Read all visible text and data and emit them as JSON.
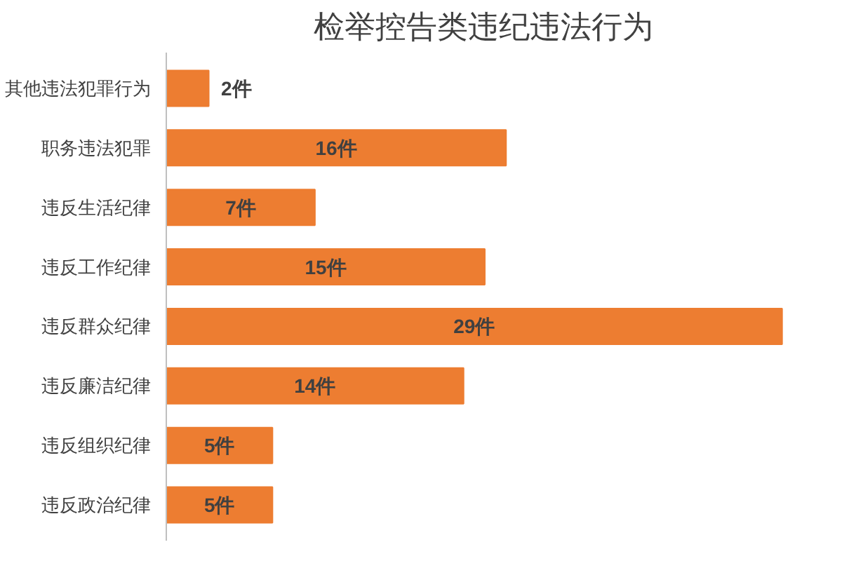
{
  "chart_data": {
    "type": "bar",
    "orientation": "horizontal",
    "title": "检举控告类违纪违法行为",
    "categories": [
      "其他违法犯罪行为",
      "职务违法犯罪",
      "违反生活纪律",
      "违反工作纪律",
      "违反群众纪律",
      "违反廉洁纪律",
      "违反组织纪律",
      "违反政治纪律"
    ],
    "values": [
      2,
      16,
      7,
      15,
      29,
      14,
      5,
      5
    ],
    "value_labels": [
      "2件",
      "16件",
      "7件",
      "15件",
      "29件",
      "14件",
      "5件",
      "5件"
    ],
    "color": "#ed7d31"
  }
}
